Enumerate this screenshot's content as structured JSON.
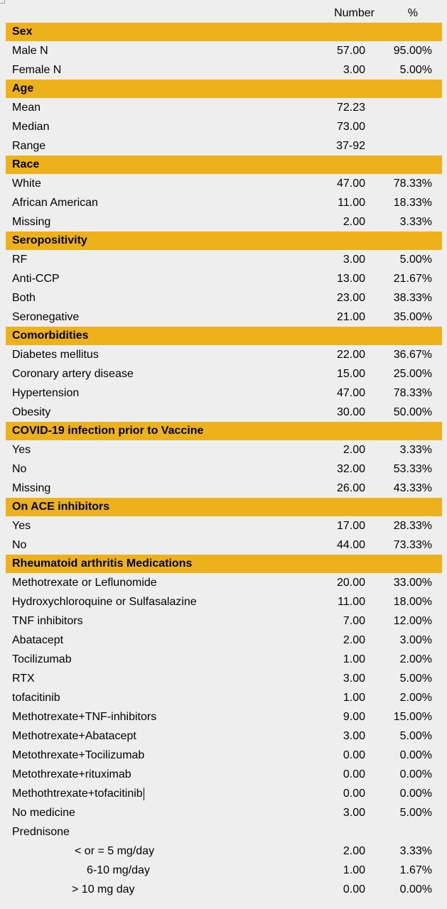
{
  "header": {
    "number": "Number",
    "percent": "%"
  },
  "sections": [
    {
      "title": "Sex",
      "rows": [
        {
          "label": "Male N",
          "number": "57.00",
          "percent": "95.00%"
        },
        {
          "label": "Female N",
          "number": "3.00",
          "percent": "5.00%"
        }
      ]
    },
    {
      "title": "Age",
      "rows": [
        {
          "label": "Mean",
          "number": "72.23",
          "percent": ""
        },
        {
          "label": "Median",
          "number": "73.00",
          "percent": ""
        },
        {
          "label": "Range",
          "number": "37-92",
          "percent": ""
        }
      ]
    },
    {
      "title": "Race",
      "rows": [
        {
          "label": "White",
          "number": "47.00",
          "percent": "78.33%"
        },
        {
          "label": "African American",
          "number": "11.00",
          "percent": "18.33%"
        },
        {
          "label": "Missing",
          "number": "2.00",
          "percent": "3.33%"
        }
      ]
    },
    {
      "title": "Seropositivity",
      "rows": [
        {
          "label": "RF",
          "number": "3.00",
          "percent": "5.00%"
        },
        {
          "label": "Anti-CCP",
          "number": "13.00",
          "percent": "21.67%"
        },
        {
          "label": "Both",
          "number": "23.00",
          "percent": "38.33%"
        },
        {
          "label": "Seronegative",
          "number": "21.00",
          "percent": "35.00%"
        }
      ]
    },
    {
      "title": "Comorbidities",
      "rows": [
        {
          "label": "Diabetes mellitus",
          "number": "22.00",
          "percent": "36.67%"
        },
        {
          "label": "Coronary artery disease",
          "number": "15.00",
          "percent": "25.00%"
        },
        {
          "label": "Hypertension",
          "number": "47.00",
          "percent": "78.33%"
        },
        {
          "label": "Obesity",
          "number": "30.00",
          "percent": "50.00%"
        }
      ]
    },
    {
      "title": "COVID-19 infection prior to Vaccine",
      "rows": [
        {
          "label": "Yes",
          "number": "2.00",
          "percent": "3.33%"
        },
        {
          "label": "No",
          "number": "32.00",
          "percent": "53.33%"
        },
        {
          "label": "Missing",
          "number": "26.00",
          "percent": "43.33%"
        }
      ]
    },
    {
      "title": "On ACE inhibitors",
      "rows": [
        {
          "label": "Yes",
          "number": "17.00",
          "percent": "28.33%"
        },
        {
          "label": "No",
          "number": "44.00",
          "percent": "73.33%"
        }
      ]
    },
    {
      "title": "Rheumatoid arthritis Medications",
      "rows": [
        {
          "label": "Methotrexate or Leflunomide",
          "number": "20.00",
          "percent": "33.00%"
        },
        {
          "label": "Hydroxychloroquine or Sulfasalazine",
          "number": "11.00",
          "percent": "18.00%"
        },
        {
          "label": "TNF inhibitors",
          "number": "7.00",
          "percent": "12.00%"
        },
        {
          "label": "Abatacept",
          "number": "2.00",
          "percent": "3.00%"
        },
        {
          "label": "Tocilizumab",
          "number": "1.00",
          "percent": "2.00%"
        },
        {
          "label": "RTX",
          "number": "3.00",
          "percent": "5.00%"
        },
        {
          "label": "tofacitinib",
          "number": "1.00",
          "percent": "2.00%"
        },
        {
          "label": "Methotrexate+TNF-inhibitors",
          "number": "9.00",
          "percent": "15.00%"
        },
        {
          "label": "Methotrexate+Abatacept",
          "number": "3.00",
          "percent": "5.00%"
        },
        {
          "label": "Metothrexate+Tocilizumab",
          "number": "0.00",
          "percent": "0.00%"
        },
        {
          "label": "Metothrexate+rituximab",
          "number": "0.00",
          "percent": "0.00%"
        },
        {
          "label": "Methothtrexate+tofacitinib",
          "number": "0.00",
          "percent": "0.00%",
          "cursor": true
        },
        {
          "label": "No medicine",
          "number": "3.00",
          "percent": "5.00%"
        },
        {
          "label": "Prednisone",
          "number": "",
          "percent": ""
        },
        {
          "label": "< or = 5 mg/day",
          "number": "2.00",
          "percent": "3.33%",
          "indent": "i2"
        },
        {
          "label": "6-10 mg/day",
          "number": "1.00",
          "percent": "1.67%",
          "indent": "i1"
        },
        {
          "label": "> 10 mg day",
          "number": "0.00",
          "percent": "0.00%",
          "indent": "i3"
        }
      ]
    }
  ],
  "colors": {
    "section_bg": "#edb21b",
    "page_bg": "#eeeeee"
  }
}
